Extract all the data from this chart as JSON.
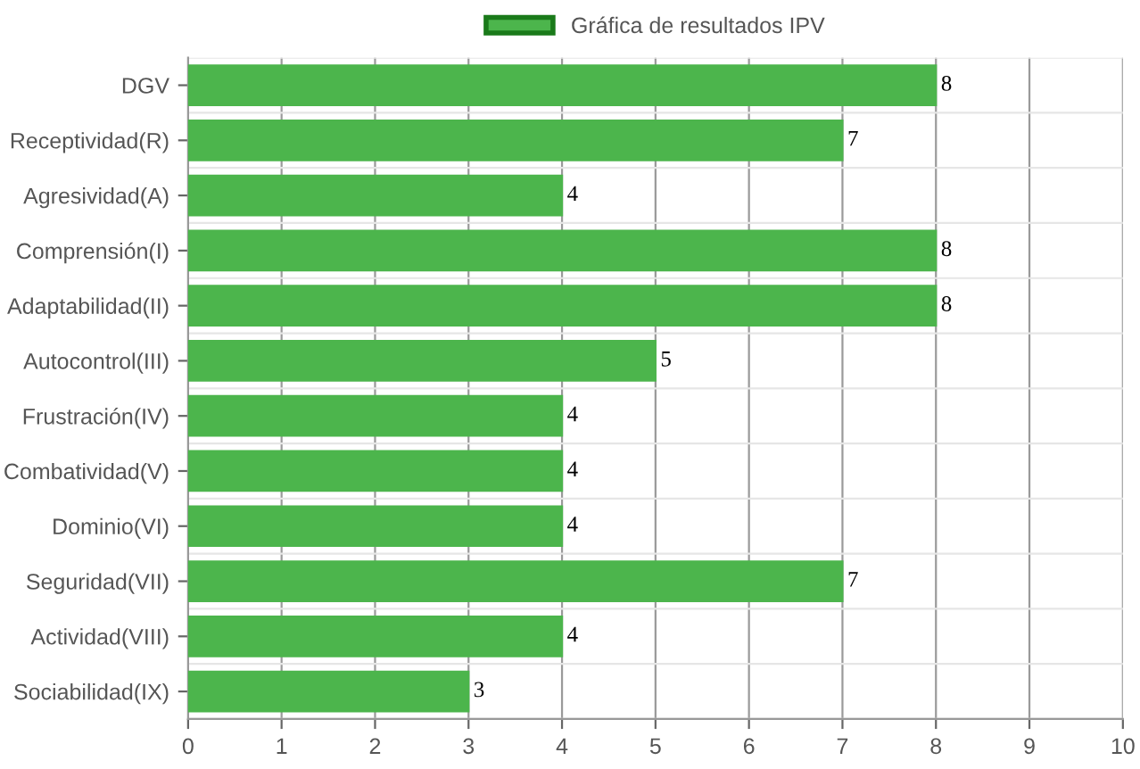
{
  "chart_data": {
    "type": "bar",
    "orientation": "horizontal",
    "categories": [
      "DGV",
      "Receptividad(R)",
      "Agresividad(A)",
      "Comprensión(I)",
      "Adaptabilidad(II)",
      "Autocontrol(III)",
      "Frustración(IV)",
      "Combatividad(V)",
      "Dominio(VI)",
      "Seguridad(VII)",
      "Actividad(VIII)",
      "Sociabilidad(IX)"
    ],
    "series": [
      {
        "name": "Gráfica de resultados IPV",
        "color": "#4cb54c",
        "values": [
          8,
          7,
          4,
          8,
          8,
          5,
          4,
          4,
          4,
          7,
          4,
          3
        ]
      }
    ],
    "xlim": [
      0,
      10
    ],
    "xticks": [
      0,
      1,
      2,
      3,
      4,
      5,
      6,
      7,
      8,
      9,
      10
    ],
    "grid": true,
    "legend": "top",
    "data_labels": true
  }
}
